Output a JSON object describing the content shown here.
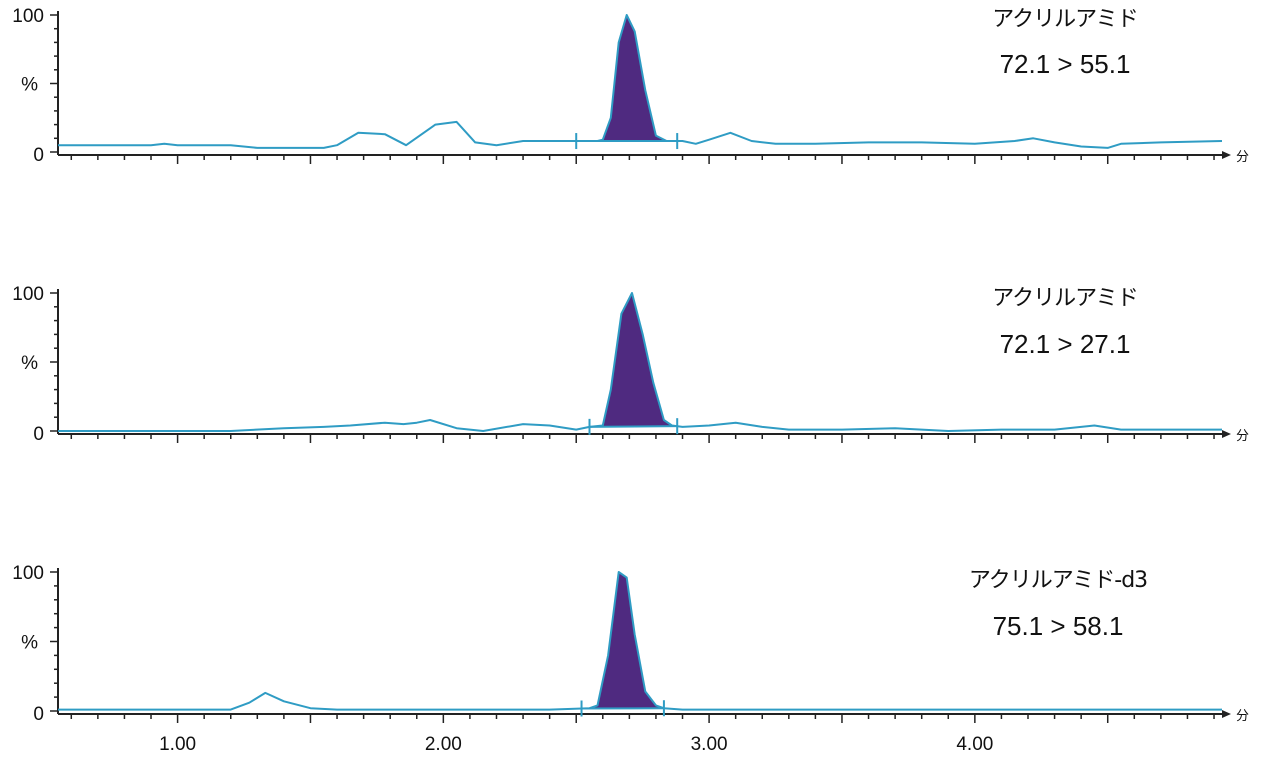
{
  "colors": {
    "trace": "#2f9cc4",
    "peak_fill": "#4f2a80",
    "axis": "#222222",
    "text": "#111111"
  },
  "chart_data": [
    {
      "type": "line",
      "title": "",
      "compound": "アクリルアミド",
      "transition": "72.1 > 55.1",
      "ylabel": "%",
      "ylim": [
        0,
        100
      ],
      "y_ticks": [
        "0",
        "100"
      ],
      "x_unit": "分",
      "xlim": [
        0.55,
        4.93
      ],
      "series": [
        {
          "x": [
            0.55,
            0.9,
            0.95,
            1.0,
            1.2,
            1.3,
            1.55,
            1.6,
            1.68,
            1.78,
            1.86,
            1.97,
            2.05,
            2.12,
            2.2,
            2.3,
            2.45,
            2.5,
            2.56,
            2.58,
            2.6,
            2.63,
            2.66,
            2.69,
            2.72,
            2.76,
            2.8,
            2.84,
            2.87,
            2.9,
            2.95,
            3.0,
            3.08,
            3.16,
            3.25,
            3.4,
            3.6,
            3.8,
            4.0,
            4.15,
            4.22,
            4.3,
            4.4,
            4.5,
            4.55,
            4.7,
            4.93
          ],
          "y": [
            5,
            5,
            6,
            5,
            5,
            3,
            3,
            5,
            14,
            13,
            5,
            20,
            22,
            7,
            5,
            8,
            8,
            8,
            8,
            8,
            9,
            25,
            80,
            100,
            88,
            45,
            12,
            8,
            8,
            8,
            6,
            9,
            14,
            8,
            6,
            6,
            7,
            7,
            6,
            8,
            10,
            7,
            4,
            3,
            6,
            7,
            8
          ]
        }
      ],
      "integrated_peak": {
        "start": 2.5,
        "end": 2.88
      }
    },
    {
      "type": "line",
      "title": "",
      "compound": "アクリルアミド",
      "transition": "72.1 > 27.1",
      "ylabel": "%",
      "ylim": [
        0,
        100
      ],
      "y_ticks": [
        "0",
        "100"
      ],
      "x_unit": "分",
      "xlim": [
        0.55,
        4.93
      ],
      "series": [
        {
          "x": [
            0.55,
            1.2,
            1.4,
            1.55,
            1.65,
            1.78,
            1.85,
            1.9,
            1.95,
            2.05,
            2.15,
            2.3,
            2.4,
            2.5,
            2.55,
            2.6,
            2.63,
            2.67,
            2.71,
            2.75,
            2.79,
            2.83,
            2.86,
            2.9,
            3.0,
            3.1,
            3.2,
            3.3,
            3.5,
            3.7,
            3.9,
            4.1,
            4.3,
            4.45,
            4.55,
            4.7,
            4.93
          ],
          "y": [
            0,
            0,
            2,
            3,
            4,
            6,
            5,
            6,
            8,
            2,
            0,
            5,
            4,
            1,
            3,
            4,
            30,
            85,
            100,
            70,
            35,
            8,
            4,
            3,
            4,
            6,
            3,
            1,
            1,
            2,
            0,
            1,
            1,
            4,
            1,
            1,
            1
          ]
        }
      ],
      "integrated_peak": {
        "start": 2.55,
        "end": 2.88
      }
    },
    {
      "type": "line",
      "title": "",
      "compound": "アクリルアミド-d3",
      "transition": "75.1 > 58.1",
      "ylabel": "%",
      "ylim": [
        0,
        100
      ],
      "y_ticks": [
        "0",
        "100"
      ],
      "x_unit": "分",
      "xlim": [
        0.55,
        4.93
      ],
      "series": [
        {
          "x": [
            0.55,
            1.2,
            1.27,
            1.33,
            1.4,
            1.5,
            1.6,
            2.4,
            2.55,
            2.58,
            2.62,
            2.66,
            2.69,
            2.72,
            2.76,
            2.8,
            2.83,
            2.9,
            3.2,
            3.5,
            4.0,
            4.93
          ],
          "y": [
            1,
            1,
            6,
            13,
            7,
            2,
            1,
            1,
            2,
            4,
            40,
            100,
            96,
            55,
            14,
            4,
            2,
            1,
            1,
            1,
            1,
            1
          ]
        }
      ],
      "integrated_peak": {
        "start": 2.52,
        "end": 2.83
      }
    }
  ],
  "x_axis": {
    "tick_labels": [
      1.0,
      2.0,
      3.0,
      4.0
    ],
    "tick_label_text": [
      "1.00",
      "2.00",
      "3.00",
      "4.00"
    ]
  }
}
